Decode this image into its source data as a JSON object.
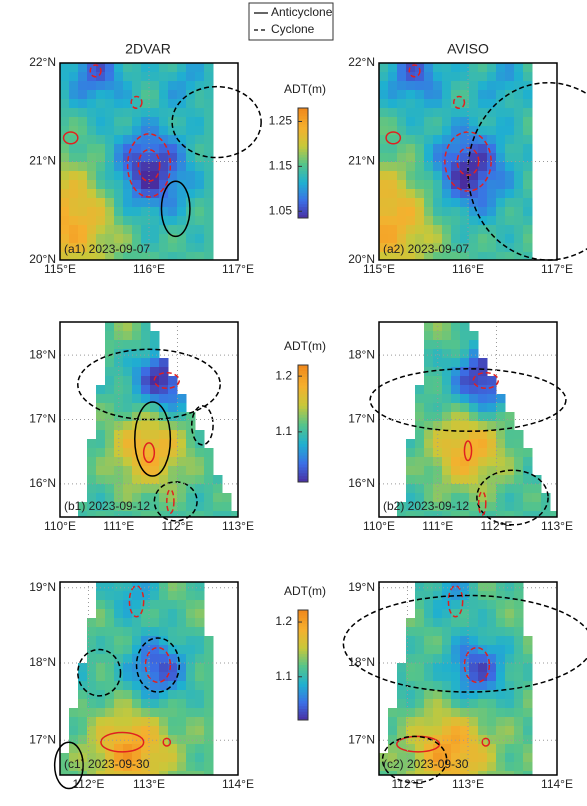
{
  "legend": [
    "Anticyclone",
    "Cyclone"
  ],
  "columns": [
    "2DVAR",
    "AVISO"
  ],
  "rows": [
    {
      "colorbar": {
        "title": "ADT(m)",
        "clim": [
          1.035,
          1.28
        ],
        "ticks": [
          1.05,
          1.15,
          1.25
        ]
      },
      "yticks": [
        "22°N",
        "21°N",
        "20°N"
      ],
      "xticks": [
        "115°E",
        "116°E",
        "117°E"
      ],
      "panels": [
        {
          "label": "(a1) 2023-09-07"
        },
        {
          "label": "(a2) 2023-09-07"
        }
      ]
    },
    {
      "colorbar": {
        "title": "ADT(m)",
        "clim": [
          1.01,
          1.22
        ],
        "ticks": [
          1.1,
          1.2
        ]
      },
      "yticks": [
        "18°N",
        "17°N",
        "16°N"
      ],
      "xticks": [
        "110°E",
        "111°E",
        "112°E",
        "113°E"
      ],
      "panels": [
        {
          "label": "(b1) 2023-09-12"
        },
        {
          "label": "(b2) 2023-09-12"
        }
      ]
    },
    {
      "colorbar": {
        "title": "ADT(m)",
        "clim": [
          1.021,
          1.222
        ],
        "ticks": [
          1.1,
          1.2
        ]
      },
      "yticks": [
        "19°N",
        "18°N",
        "17°N"
      ],
      "xticks": [
        "112°E",
        "113°E",
        "114°E"
      ],
      "panels": [
        {
          "label": "(c1) 2023-09-30"
        },
        {
          "label": "(c2) 2023-09-30"
        }
      ]
    }
  ]
}
